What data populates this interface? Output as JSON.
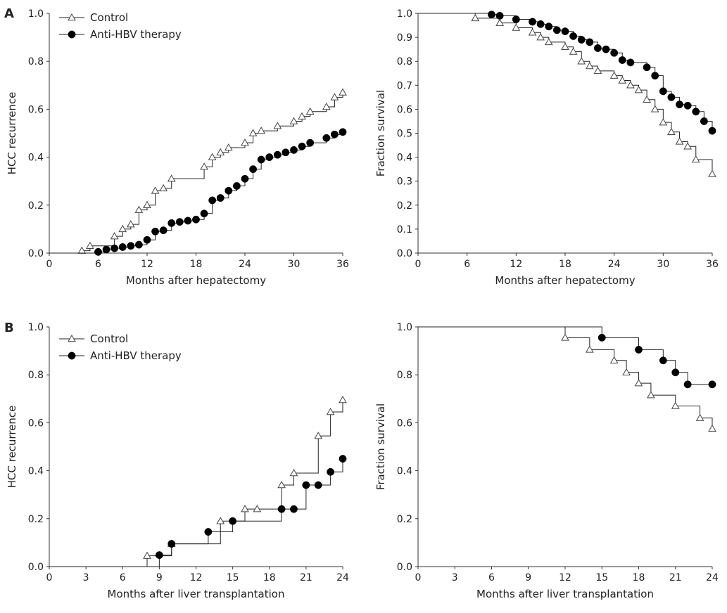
{
  "panel_letters": [
    "A",
    "B"
  ],
  "chart_data": [
    {
      "type": "line",
      "panel": "A",
      "xlabel": "Months after hepatectomy",
      "ylabel": "HCC recurrence",
      "xlim": [
        0,
        36
      ],
      "ylim": [
        0,
        1.0
      ],
      "xticks": [
        0,
        6,
        12,
        18,
        24,
        30,
        36
      ],
      "yticks": [
        "0.0",
        "0.2",
        "0.4",
        "0.6",
        "0.8",
        "1.0"
      ],
      "legend": "top-left",
      "step_baseline": 0,
      "series": [
        {
          "name": "Control",
          "marker": "open-triangle",
          "x": [
            4,
            5,
            8,
            9,
            10,
            11,
            12,
            13,
            14,
            15,
            19,
            20,
            21,
            22,
            24,
            25,
            26,
            28,
            30,
            31,
            32,
            34,
            35,
            36
          ],
          "y": [
            0.01,
            0.03,
            0.07,
            0.1,
            0.12,
            0.18,
            0.2,
            0.26,
            0.27,
            0.31,
            0.36,
            0.4,
            0.42,
            0.44,
            0.46,
            0.5,
            0.51,
            0.53,
            0.55,
            0.57,
            0.59,
            0.61,
            0.65,
            0.67
          ]
        },
        {
          "name": "Anti-HBV therapy",
          "marker": "filled-circle",
          "x": [
            6,
            7,
            8,
            9,
            10,
            11,
            12,
            13,
            14,
            15,
            16,
            17,
            18,
            19,
            20,
            21,
            22,
            23,
            24,
            25,
            26,
            27,
            28,
            29,
            30,
            31,
            32,
            34,
            35,
            36
          ],
          "y": [
            0.005,
            0.015,
            0.02,
            0.025,
            0.03,
            0.035,
            0.055,
            0.09,
            0.095,
            0.125,
            0.13,
            0.135,
            0.14,
            0.165,
            0.22,
            0.23,
            0.26,
            0.28,
            0.31,
            0.35,
            0.39,
            0.4,
            0.41,
            0.42,
            0.43,
            0.445,
            0.46,
            0.48,
            0.495,
            0.505
          ]
        }
      ]
    },
    {
      "type": "line",
      "panel": "A",
      "xlabel": "Months after hepatectomy",
      "ylabel": "Fraction survival",
      "xlim": [
        0,
        36
      ],
      "ylim": [
        0,
        1.0
      ],
      "xticks": [
        0,
        6,
        12,
        18,
        24,
        30,
        36
      ],
      "yticks": [
        "0.0",
        "0.1",
        "0.2",
        "0.3",
        "0.4",
        "0.5",
        "0.6",
        "0.7",
        "0.8",
        "0.9",
        "1.0"
      ],
      "step_baseline": 1,
      "series": [
        {
          "name": "Control",
          "marker": "open-triangle",
          "x": [
            7,
            10,
            12,
            14,
            15,
            16,
            18,
            19,
            20,
            21,
            22,
            24,
            25,
            26,
            27,
            28,
            29,
            30,
            31,
            32,
            33,
            34,
            36
          ],
          "y": [
            0.98,
            0.96,
            0.94,
            0.92,
            0.9,
            0.88,
            0.86,
            0.84,
            0.8,
            0.78,
            0.76,
            0.74,
            0.72,
            0.7,
            0.68,
            0.64,
            0.6,
            0.545,
            0.505,
            0.465,
            0.445,
            0.39,
            0.33
          ]
        },
        {
          "name": "Anti-HBV therapy",
          "marker": "filled-circle",
          "x": [
            9,
            10,
            12,
            14,
            15,
            16,
            17,
            18,
            19,
            20,
            21,
            22,
            23,
            24,
            25,
            26,
            28,
            29,
            30,
            31,
            32,
            33,
            34,
            35,
            36
          ],
          "y": [
            0.995,
            0.99,
            0.975,
            0.965,
            0.955,
            0.945,
            0.93,
            0.925,
            0.905,
            0.89,
            0.88,
            0.855,
            0.85,
            0.835,
            0.805,
            0.795,
            0.775,
            0.74,
            0.675,
            0.65,
            0.62,
            0.615,
            0.59,
            0.55,
            0.51
          ]
        }
      ]
    },
    {
      "type": "line",
      "panel": "B",
      "xlabel": "Months after liver transplantation",
      "ylabel": "HCC recurrence",
      "xlim": [
        0,
        24
      ],
      "ylim": [
        0,
        1.0
      ],
      "xticks": [
        0,
        3,
        6,
        9,
        12,
        15,
        18,
        21,
        24
      ],
      "yticks": [
        "0.0",
        "0.2",
        "0.4",
        "0.6",
        "0.8",
        "1.0"
      ],
      "legend": "top-left",
      "step_baseline": 0,
      "series": [
        {
          "name": "Control",
          "marker": "open-triangle",
          "x": [
            8,
            10,
            14,
            16,
            17,
            19,
            20,
            22,
            23,
            24
          ],
          "y": [
            0.045,
            0.095,
            0.19,
            0.24,
            0.24,
            0.34,
            0.39,
            0.545,
            0.645,
            0.695
          ]
        },
        {
          "name": "Anti-HBV therapy",
          "marker": "filled-circle",
          "x": [
            9,
            10,
            13,
            15,
            19,
            20,
            21,
            22,
            23,
            24
          ],
          "y": [
            0.048,
            0.095,
            0.145,
            0.19,
            0.24,
            0.24,
            0.34,
            0.34,
            0.395,
            0.45
          ]
        }
      ]
    },
    {
      "type": "line",
      "panel": "B",
      "xlabel": "Months after liver transplantation",
      "ylabel": "Fraction survival",
      "xlim": [
        0,
        24
      ],
      "ylim": [
        0,
        1.0
      ],
      "xticks": [
        0,
        3,
        6,
        9,
        12,
        15,
        18,
        21,
        24
      ],
      "yticks": [
        "0.0",
        "0.2",
        "0.4",
        "0.6",
        "0.8",
        "1.0"
      ],
      "step_baseline": 1,
      "series": [
        {
          "name": "Control",
          "marker": "open-triangle",
          "x": [
            12,
            14,
            16,
            17,
            18,
            19,
            21,
            23,
            24
          ],
          "y": [
            0.955,
            0.905,
            0.86,
            0.81,
            0.765,
            0.715,
            0.67,
            0.62,
            0.575
          ]
        },
        {
          "name": "Anti-HBV therapy",
          "marker": "filled-circle",
          "x": [
            15,
            18,
            20,
            21,
            22,
            24
          ],
          "y": [
            0.955,
            0.905,
            0.86,
            0.81,
            0.76,
            0.76
          ]
        }
      ]
    }
  ]
}
